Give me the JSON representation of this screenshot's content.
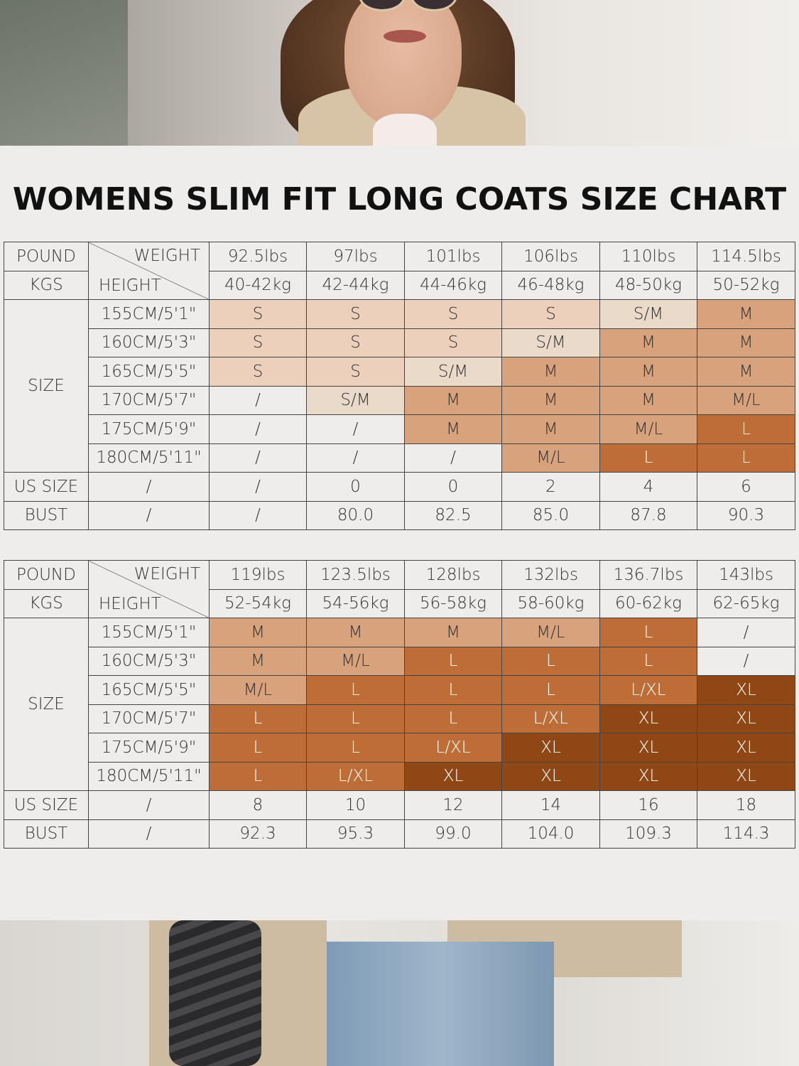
{
  "title": "WOMENS SLIM FIT LONG COATS SIZE CHART",
  "labels": {
    "pound": "POUND",
    "kgs": "KGS",
    "weight": "WEIGHT",
    "height": "HEIGHT",
    "size": "SIZE",
    "us_size": "US SIZE",
    "bust": "BUST"
  },
  "heights": [
    "155CM/5'1\"",
    "160CM/5'3\"",
    "165CM/5'5\"",
    "170CM/5'7\"",
    "175CM/5'9\"",
    "180CM/5'11\""
  ],
  "colors": {
    "S": "#ecd0bc",
    "S/M": "#eadaca",
    "M": "#d7a27c",
    "M/L": "#d7a27c",
    "L": "#bd6d35",
    "L/XL": "#bd6d35",
    "XL": "#8f4715",
    "/": "#efedeb"
  },
  "tables": [
    {
      "pounds": [
        "92.5lbs",
        "97lbs",
        "101lbs",
        "106lbs",
        "110lbs",
        "114.5lbs"
      ],
      "kgs": [
        "40-42kg",
        "42-44kg",
        "44-46kg",
        "46-48kg",
        "48-50kg",
        "50-52kg"
      ],
      "sizes": [
        [
          "S",
          "S",
          "S",
          "S",
          "S/M",
          "M"
        ],
        [
          "S",
          "S",
          "S",
          "S/M",
          "M",
          "M"
        ],
        [
          "S",
          "S",
          "S/M",
          "M",
          "M",
          "M"
        ],
        [
          "/",
          "S/M",
          "M",
          "M",
          "M",
          "M/L"
        ],
        [
          "/",
          "/",
          "M",
          "M",
          "M/L",
          "L"
        ],
        [
          "/",
          "/",
          "/",
          "M/L",
          "L",
          "L"
        ]
      ],
      "us_size_first": "/",
      "us_size": [
        "/",
        "0",
        "0",
        "2",
        "4",
        "6"
      ],
      "bust_first": "/",
      "bust": [
        "/",
        "80.0",
        "82.5",
        "85.0",
        "87.8",
        "90.3"
      ]
    },
    {
      "pounds": [
        "119lbs",
        "123.5lbs",
        "128lbs",
        "132lbs",
        "136.7lbs",
        "143lbs"
      ],
      "kgs": [
        "52-54kg",
        "54-56kg",
        "56-58kg",
        "58-60kg",
        "60-62kg",
        "62-65kg"
      ],
      "sizes": [
        [
          "M",
          "M",
          "M",
          "M/L",
          "L",
          "/"
        ],
        [
          "M",
          "M/L",
          "L",
          "L",
          "L",
          "/"
        ],
        [
          "M/L",
          "L",
          "L",
          "L",
          "L/XL",
          "XL"
        ],
        [
          "L",
          "L",
          "L",
          "L/XL",
          "XL",
          "XL"
        ],
        [
          "L",
          "L",
          "L/XL",
          "XL",
          "XL",
          "XL"
        ],
        [
          "L",
          "L/XL",
          "XL",
          "XL",
          "XL",
          "XL"
        ]
      ],
      "us_size_first": "/",
      "us_size": [
        "8",
        "10",
        "12",
        "14",
        "16",
        "18"
      ],
      "bust_first": "/",
      "bust": [
        "92.3",
        "95.3",
        "99.0",
        "104.0",
        "109.3",
        "114.3"
      ]
    }
  ]
}
